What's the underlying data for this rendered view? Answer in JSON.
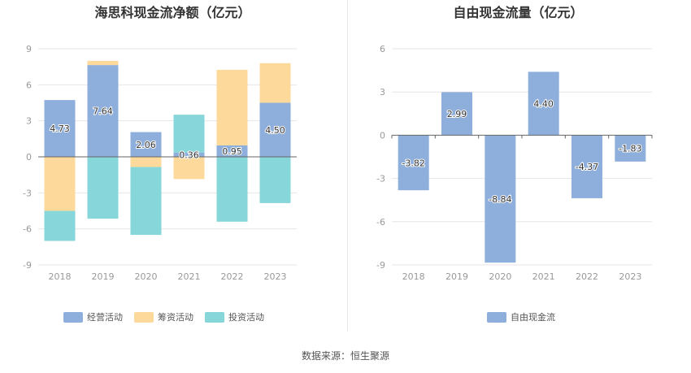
{
  "chart_data": [
    {
      "type": "bar",
      "stacked": true,
      "title": "海思科现金流净额（亿元）",
      "categories": [
        "2018",
        "2019",
        "2020",
        "2021",
        "2022",
        "2023"
      ],
      "ylim": [
        -9,
        9
      ],
      "yticks": [
        9,
        6,
        3,
        0,
        -3,
        -6,
        -9
      ],
      "grid": true,
      "legend_position": "bottom",
      "series": [
        {
          "name": "经营活动",
          "color": "#8eaedc",
          "values": [
            4.73,
            7.64,
            2.06,
            0.36,
            0.95,
            4.5
          ],
          "labels": [
            "4.73",
            "7.64",
            "2.06",
            "0.36",
            "0.95",
            "4.50"
          ]
        },
        {
          "name": "筹资活动",
          "color": "#fdd99b",
          "values": [
            -4.5,
            0.35,
            -0.85,
            -1.85,
            6.3,
            3.3
          ]
        },
        {
          "name": "投资活动",
          "color": "#86d6da",
          "values": [
            -2.5,
            -5.15,
            -5.65,
            3.15,
            -5.4,
            -3.85
          ]
        }
      ]
    },
    {
      "type": "bar",
      "title": "自由现金流量（亿元）",
      "categories": [
        "2018",
        "2019",
        "2020",
        "2021",
        "2022",
        "2023"
      ],
      "ylim": [
        -9,
        6
      ],
      "yticks": [
        6,
        3,
        0,
        -3,
        -6,
        -9
      ],
      "grid": true,
      "legend_position": "bottom",
      "series": [
        {
          "name": "自由现金流",
          "color": "#8eaedc",
          "values": [
            -3.82,
            2.99,
            -8.84,
            4.4,
            -4.37,
            -1.83
          ],
          "labels": [
            "-3.82",
            "2.99",
            "-8.84",
            "4.40",
            "-4.37",
            "-1.83"
          ]
        }
      ]
    }
  ],
  "source": "数据来源：恒生聚源"
}
